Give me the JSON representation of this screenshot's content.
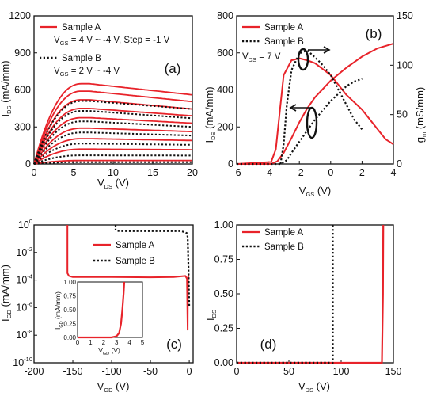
{
  "colors": {
    "sampleA": "#e8232a",
    "sampleB": "#111111",
    "axis": "#111111"
  },
  "chart_data": [
    {
      "type": "line",
      "panel_label": "(a)",
      "xlabel_main": "V",
      "xlabel_sub": "DS",
      "xlabel_unit": " (V)",
      "ylabel_main": "I",
      "ylabel_sub": "DS",
      "ylabel_unit": " (mA/mm)",
      "xlim": [
        0,
        20
      ],
      "ylim": [
        0,
        1200
      ],
      "x_ticks": [
        0,
        5,
        10,
        15,
        20
      ],
      "x_tick_labels": [
        "0",
        "5",
        "10",
        "15",
        "20"
      ],
      "y_ticks": [
        0,
        300,
        600,
        900,
        1200
      ],
      "y_tick_labels": [
        "0",
        "300",
        "600",
        "900",
        "1200"
      ],
      "legend": [
        {
          "name": "Sample A",
          "style": "solid",
          "line2_main": "V",
          "line2_sub": "GS",
          "line2_rest": " = 4 V ~ -4 V,  Step = -1 V"
        },
        {
          "name": "Sample B",
          "style": "dotted",
          "line2_main": "V",
          "line2_sub": "GS",
          "line2_rest": " = 2 V ~ -4 V"
        }
      ],
      "sample_a_curves": [
        {
          "vgs": 4,
          "peak": 650,
          "i20": 560
        },
        {
          "vgs": 3,
          "peak": 590,
          "i20": 505
        },
        {
          "vgs": 2,
          "peak": 520,
          "i20": 445
        },
        {
          "vgs": 1,
          "peak": 450,
          "i20": 390
        },
        {
          "vgs": 0,
          "peak": 375,
          "i20": 330
        },
        {
          "vgs": -1,
          "peak": 290,
          "i20": 262
        },
        {
          "vgs": -2,
          "peak": 205,
          "i20": 190
        },
        {
          "vgs": -3,
          "peak": 120,
          "i20": 115
        },
        {
          "vgs": -4,
          "peak": 28,
          "i20": 28
        }
      ],
      "sample_b_curves": [
        {
          "vgs": 2,
          "peak": 510,
          "i20": 445
        },
        {
          "vgs": 1,
          "peak": 430,
          "i20": 370
        },
        {
          "vgs": 0,
          "peak": 345,
          "i20": 300
        },
        {
          "vgs": -1,
          "peak": 255,
          "i20": 230
        },
        {
          "vgs": -2,
          "peak": 165,
          "i20": 155
        },
        {
          "vgs": -3,
          "peak": 70,
          "i20": 68
        },
        {
          "vgs": -4,
          "peak": 15,
          "i20": 15
        }
      ]
    },
    {
      "type": "line",
      "panel_label": "(b)",
      "xlabel_main": "V",
      "xlabel_sub": "GS",
      "xlabel_unit": " (V)",
      "ylabel_main": "I",
      "ylabel_sub": "DS",
      "ylabel_unit": " (mA/mm)",
      "y2label_main": "g",
      "y2label_sub": "m",
      "y2label_unit": " (mS/mm)",
      "xlim": [
        -6,
        4
      ],
      "ylim": [
        0,
        800
      ],
      "y2lim": [
        0,
        150
      ],
      "x_ticks": [
        -6,
        -4,
        -2,
        0,
        2,
        4
      ],
      "x_tick_labels": [
        "-6",
        "-4",
        "-2",
        "0",
        "2",
        "4"
      ],
      "y_ticks": [
        0,
        200,
        400,
        600,
        800
      ],
      "y_tick_labels": [
        "0",
        "200",
        "400",
        "600",
        "800"
      ],
      "y2_ticks": [
        0,
        50,
        100,
        150
      ],
      "y2_tick_labels": [
        "0",
        "50",
        "100",
        "150"
      ],
      "legend": [
        {
          "name": "Sample A",
          "style": "solid"
        },
        {
          "name": "Sample B",
          "style": "dotted"
        }
      ],
      "annotation": {
        "main": "V",
        "sub": "DS",
        "rest": " = 7 V"
      },
      "series": [
        {
          "name": "Sample A I_DS",
          "axis": "left",
          "style": "solid",
          "x": [
            -6,
            -3.8,
            -3.4,
            -3.0,
            -2.5,
            -2.0,
            -1.5,
            -1.0,
            0,
            1,
            2,
            3,
            4
          ],
          "y": [
            0,
            0,
            15,
            60,
            140,
            225,
            300,
            360,
            450,
            520,
            580,
            625,
            650
          ]
        },
        {
          "name": "Sample A g_m",
          "axis": "right",
          "style": "solid",
          "x": [
            -6,
            -3.8,
            -3.5,
            -3.2,
            -3.0,
            -2.5,
            -2.0,
            -1.5,
            -1.0,
            0,
            1,
            2,
            3,
            3.5,
            4
          ],
          "y": [
            0,
            2,
            15,
            60,
            90,
            105,
            107,
            105,
            102,
            90,
            70,
            55,
            35,
            25,
            20
          ]
        },
        {
          "name": "Sample B I_DS",
          "axis": "left",
          "style": "dotted",
          "x": [
            -6,
            -3.2,
            -2.8,
            -2.5,
            -2.0,
            -1.5,
            -1.0,
            -0.5,
            0,
            0.5,
            1.0,
            1.5,
            2.0
          ],
          "y": [
            0,
            0,
            20,
            60,
            120,
            180,
            240,
            290,
            340,
            380,
            420,
            445,
            460
          ]
        },
        {
          "name": "Sample B g_m",
          "axis": "right",
          "style": "dotted",
          "x": [
            -3.2,
            -3.0,
            -2.8,
            -2.5,
            -2.0,
            -1.5,
            -1.0,
            -0.5,
            0,
            0.5,
            1.0,
            1.5,
            2.0
          ],
          "y": [
            0,
            20,
            60,
            95,
            112,
            115,
            108,
            100,
            90,
            75,
            60,
            45,
            35
          ]
        }
      ]
    },
    {
      "type": "line",
      "panel_label": "(c)",
      "xlabel_main": "V",
      "xlabel_sub": "GD",
      "xlabel_unit": " (V)",
      "ylabel_main": "I",
      "ylabel_sub": "GD",
      "ylabel_unit": " (mA/mm)",
      "xlim": [
        -200,
        5
      ],
      "ylim_log10": [
        -10,
        0
      ],
      "log_y": true,
      "x_ticks": [
        -200,
        -150,
        -100,
        -50,
        0
      ],
      "x_tick_labels": [
        "-200",
        "-150",
        "-100",
        "-50",
        "0"
      ],
      "y_ticks_exp": [
        0,
        -2,
        -4,
        -6,
        -8,
        -10
      ],
      "y_tick_base": "10",
      "y_tick_exps": [
        "0",
        "-2",
        "-4",
        "-6",
        "-8",
        "-10"
      ],
      "legend": [
        {
          "name": "Sample A",
          "style": "solid"
        },
        {
          "name": "Sample B",
          "style": "dotted"
        }
      ],
      "series": [
        {
          "name": "Sample A",
          "style": "solid",
          "x": [
            -157,
            -157,
            -155,
            -150,
            -100,
            -50,
            -20,
            -5,
            -3,
            -2,
            -1.8,
            -1.5,
            -1,
            0
          ],
          "log10_y": [
            0,
            -3.5,
            -3.7,
            -3.78,
            -3.78,
            -3.8,
            -3.78,
            -3.7,
            -3.9,
            -7.6,
            -5,
            -3.8,
            -3.7,
            -3.75
          ]
        },
        {
          "name": "Sample B",
          "style": "dotted",
          "x": [
            -95,
            -95,
            -90,
            -50,
            -10,
            -3,
            -2,
            -1,
            0
          ],
          "log10_y": [
            0,
            -0.4,
            -0.45,
            -0.45,
            -0.45,
            -0.6,
            -0.9,
            -3,
            -6
          ]
        }
      ],
      "inset": {
        "xlabel_main": "V",
        "xlabel_sub": "GD",
        "xlabel_unit": " (V)",
        "ylabel_main": "I",
        "ylabel_sub": "GD",
        "ylabel_unit": " (mA/mm)",
        "xlim": [
          0,
          5
        ],
        "ylim": [
          0,
          1
        ],
        "x_tick_labels": [
          "0",
          "1",
          "2",
          "3",
          "4",
          "5"
        ],
        "y_tick_labels": [
          "0.00",
          "0.25",
          "0.50",
          "0.75",
          "1.00"
        ],
        "series": [
          {
            "name": "Sample A",
            "style": "solid",
            "x": [
              0,
              2.6,
              3.0,
              3.2,
              3.35,
              3.45,
              3.55,
              3.6
            ],
            "y": [
              0,
              0,
              0.02,
              0.08,
              0.25,
              0.5,
              0.8,
              1.0
            ]
          }
        ]
      }
    },
    {
      "type": "line",
      "panel_label": "(d)",
      "xlabel_main": "V",
      "xlabel_sub": "DS",
      "xlabel_unit": " (V)",
      "ylabel_main": "I",
      "ylabel_sub": "DS",
      "ylabel_unit": "",
      "xlim": [
        0,
        150
      ],
      "ylim": [
        0,
        1
      ],
      "x_ticks": [
        0,
        50,
        100,
        150
      ],
      "x_tick_labels": [
        "0",
        "50",
        "100",
        "150"
      ],
      "y_ticks": [
        0,
        0.25,
        0.5,
        0.75,
        1.0
      ],
      "y_tick_labels": [
        "0.00",
        "0.25",
        "0.50",
        "0.75",
        "1.00"
      ],
      "legend": [
        {
          "name": "Sample A",
          "style": "solid"
        },
        {
          "name": "Sample B",
          "style": "dotted"
        }
      ],
      "series": [
        {
          "name": "Sample A",
          "style": "solid",
          "x": [
            0,
            139,
            140,
            140.3
          ],
          "y": [
            0,
            0,
            0.5,
            1.0
          ]
        },
        {
          "name": "Sample B",
          "style": "dotted",
          "x": [
            0,
            92,
            92,
            92
          ],
          "y": [
            0,
            0,
            0.5,
            1.0
          ]
        }
      ]
    }
  ]
}
